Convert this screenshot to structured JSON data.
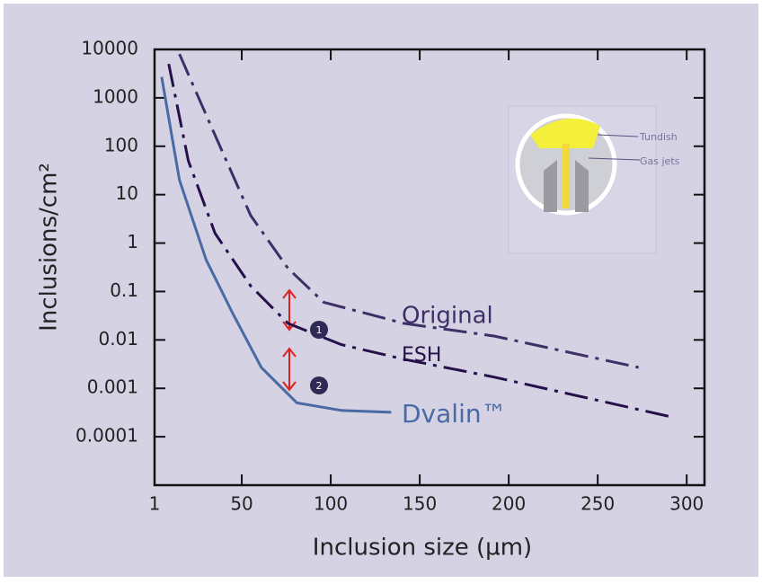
{
  "chart_data": {
    "type": "line",
    "x_label": "Inclusion size (µm)",
    "y_label": "Inclusions/cm²",
    "xlim": [
      1,
      310
    ],
    "xticks": [
      1,
      50,
      100,
      150,
      200,
      250,
      300
    ],
    "ylim": [
      1e-05,
      10000
    ],
    "yticks": [
      10000,
      1000,
      100,
      10,
      1,
      0.1,
      0.01,
      0.001,
      0.0001
    ],
    "y_scale": "log",
    "series": [
      {
        "name": "Original",
        "color": "#3e2f66",
        "style": "dash-dot",
        "x": [
          15,
          35,
          55,
          76,
          96,
          141,
          192,
          273
        ],
        "values": [
          8000,
          170,
          3.7,
          0.3,
          0.06,
          0.022,
          0.012,
          0.0027
        ]
      },
      {
        "name": "ESH",
        "color": "#26104a",
        "style": "dash-dot",
        "x": [
          9,
          20,
          35,
          55,
          76,
          106,
          141,
          192,
          293
        ],
        "values": [
          5000,
          50,
          1.6,
          0.13,
          0.022,
          0.008,
          0.004,
          0.0017,
          0.00025
        ]
      },
      {
        "name": "Dvalin™",
        "color": "#4a6aa3",
        "style": "solid",
        "x": [
          5,
          15,
          30,
          45,
          61,
          81,
          106,
          134
        ],
        "values": [
          2700,
          20,
          0.45,
          0.035,
          0.0027,
          0.0005,
          0.00035,
          0.00032
        ]
      }
    ],
    "annotations": [
      "1",
      "2"
    ],
    "inset_labels": [
      "Tundish",
      "Gas jets"
    ]
  }
}
